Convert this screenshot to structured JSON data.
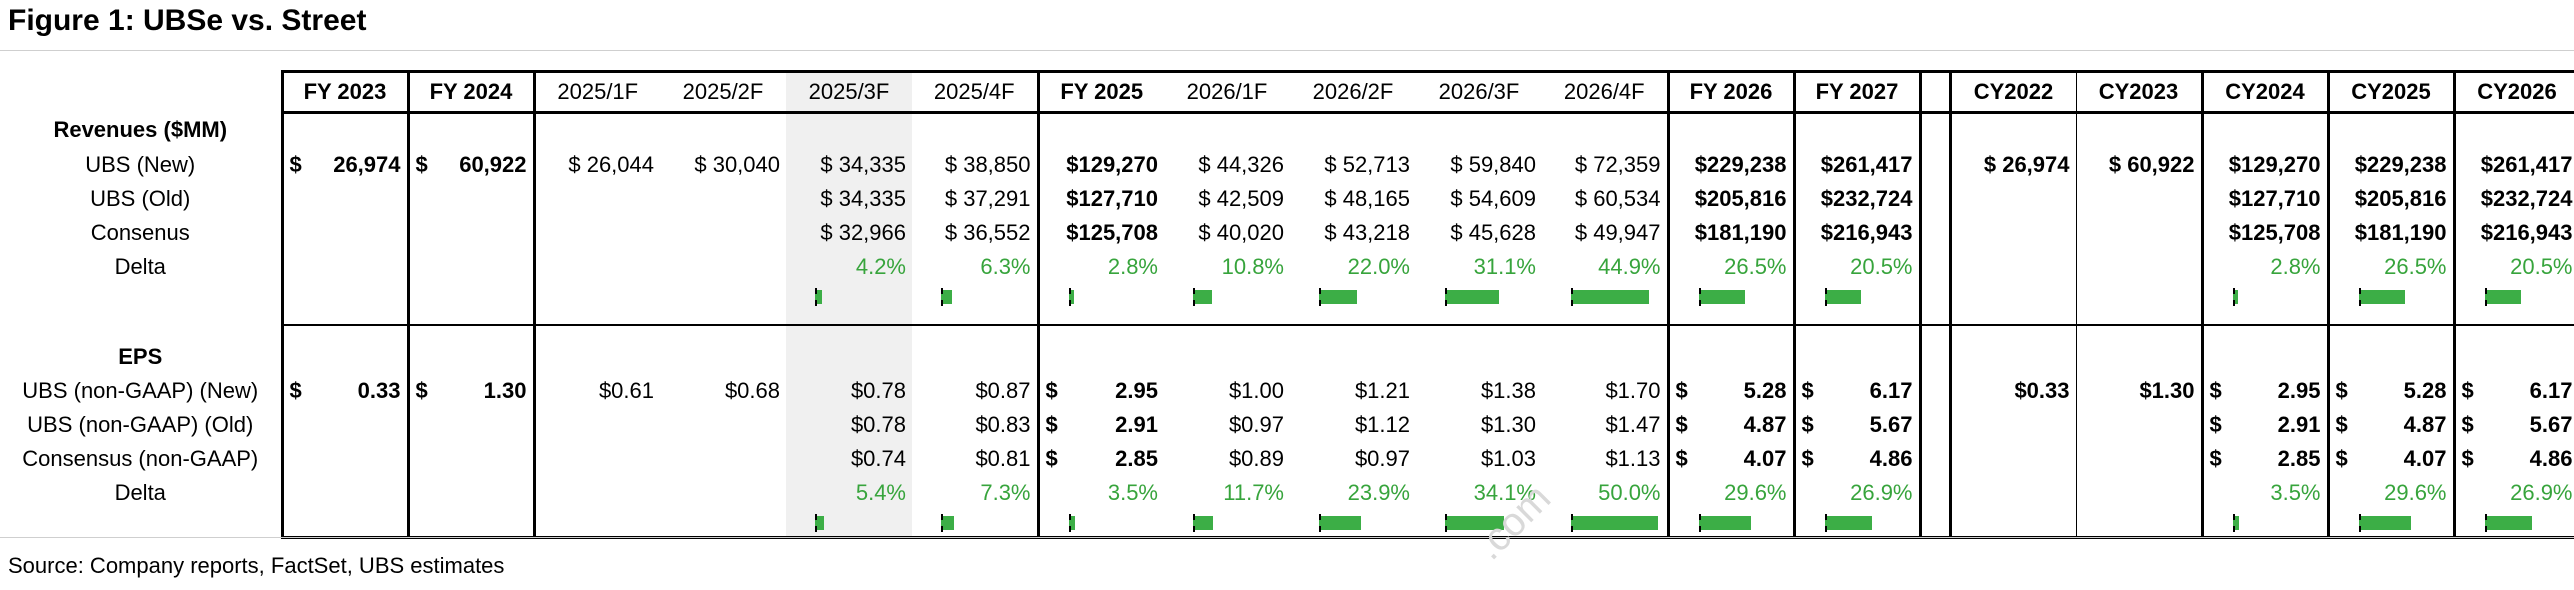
{
  "figure_title": "Figure 1: UBSe vs. Street",
  "source": "Source: Company reports, FactSet, UBS estimates",
  "colors": {
    "delta_text": "#37a43c",
    "delta_bar": "#3cae46",
    "shade": "#f0f0f0"
  },
  "headers": [
    "FY 2023",
    "FY 2024",
    "2025/1F",
    "2025/2F",
    "2025/3F",
    "2025/4F",
    "FY 2025",
    "2026/1F",
    "2026/2F",
    "2026/3F",
    "2026/4F",
    "FY 2026",
    "FY 2027",
    "",
    "CY2022",
    "CY2023",
    "CY2024",
    "CY2025",
    "CY2026"
  ],
  "revenues": {
    "section": "Revenues ($MM)",
    "rows": [
      {
        "label": "UBS (New)",
        "values": [
          "$ 26,974",
          "$ 60,922",
          "$ 26,044",
          "$ 30,040",
          "$ 34,335",
          "$ 38,850",
          "$129,270",
          "$ 44,326",
          "$ 52,713",
          "$ 59,840",
          "$ 72,359",
          "$229,238",
          "$261,417",
          "",
          "$ 26,974",
          "$ 60,922",
          "$129,270",
          "$229,238",
          "$261,417"
        ]
      },
      {
        "label": "UBS (Old)",
        "values": [
          "",
          "",
          "",
          "",
          "$ 34,335",
          "$ 37,291",
          "$127,710",
          "$ 42,509",
          "$ 48,165",
          "$ 54,609",
          "$ 60,534",
          "$205,816",
          "$232,724",
          "",
          "",
          "",
          "$127,710",
          "$205,816",
          "$232,724"
        ]
      },
      {
        "label": "Consenus",
        "values": [
          "",
          "",
          "",
          "",
          "$ 32,966",
          "$ 36,552",
          "$125,708",
          "$ 40,020",
          "$ 43,218",
          "$ 45,628",
          "$ 49,947",
          "$181,190",
          "$216,943",
          "",
          "",
          "",
          "$125,708",
          "$181,190",
          "$216,943"
        ]
      },
      {
        "label": "Delta",
        "values": [
          "",
          "",
          "",
          "",
          "4.2%",
          "6.3%",
          "2.8%",
          "10.8%",
          "22.0%",
          "31.1%",
          "44.9%",
          "26.5%",
          "20.5%",
          "",
          "",
          "",
          "2.8%",
          "26.5%",
          "20.5%"
        ]
      }
    ]
  },
  "eps": {
    "section": "EPS",
    "rows": [
      {
        "label": "UBS (non-GAAP) (New)",
        "values": [
          "$ 0.33",
          "$ 1.30",
          "$0.61",
          "$0.68",
          "$0.78",
          "$0.87",
          "$ 2.95",
          "$1.00",
          "$1.21",
          "$1.38",
          "$1.70",
          "$ 5.28",
          "$ 6.17",
          "",
          "$0.33",
          "$1.30",
          "$ 2.95",
          "$ 5.28",
          "$ 6.17"
        ]
      },
      {
        "label": "UBS (non-GAAP) (Old)",
        "values": [
          "",
          "",
          "",
          "",
          "$0.78",
          "$0.83",
          "$ 2.91",
          "$0.97",
          "$1.12",
          "$1.30",
          "$1.47",
          "$ 4.87",
          "$ 5.67",
          "",
          "",
          "",
          "$ 2.91",
          "$ 4.87",
          "$ 5.67"
        ]
      },
      {
        "label": "Consensus (non-GAAP)",
        "values": [
          "",
          "",
          "",
          "",
          "$0.74",
          "$0.81",
          "$ 2.85",
          "$0.89",
          "$0.97",
          "$1.03",
          "$1.13",
          "$ 4.07",
          "$ 4.86",
          "",
          "",
          "",
          "$ 2.85",
          "$ 4.07",
          "$ 4.86"
        ]
      },
      {
        "label": "Delta",
        "values": [
          "",
          "",
          "",
          "",
          "5.4%",
          "7.3%",
          "3.5%",
          "11.7%",
          "23.9%",
          "34.1%",
          "50.0%",
          "29.6%",
          "26.9%",
          "",
          "",
          "",
          "3.5%",
          "29.6%",
          "26.9%"
        ]
      }
    ]
  },
  "delta_bar_values": {
    "revenues": [
      null,
      null,
      null,
      null,
      4.2,
      6.3,
      2.8,
      10.8,
      22.0,
      31.1,
      44.9,
      26.5,
      20.5,
      null,
      null,
      null,
      2.8,
      26.5,
      20.5
    ],
    "eps": [
      null,
      null,
      null,
      null,
      5.4,
      7.3,
      3.5,
      11.7,
      23.9,
      34.1,
      50.0,
      29.6,
      26.9,
      null,
      null,
      null,
      3.5,
      29.6,
      26.9
    ]
  }
}
